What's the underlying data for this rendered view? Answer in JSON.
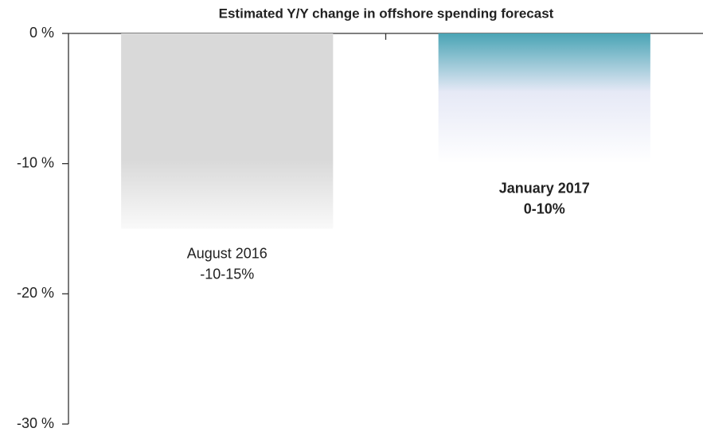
{
  "chart_data": {
    "type": "bar",
    "title": "Estimated Y/Y change in offshore spending forecast",
    "categories": [
      "August 2016",
      "January 2017"
    ],
    "values": [
      -15,
      -10
    ],
    "value_labels": [
      "-10-15%",
      "0-10%"
    ],
    "colors": [
      "#d9d9d9",
      "#4aa4b5"
    ],
    "ylim": [
      -30,
      0
    ],
    "yticks": [
      {
        "value": 0,
        "label": "0 %"
      },
      {
        "value": -10,
        "label": "-10 %"
      },
      {
        "value": -20,
        "label": "-20 %"
      },
      {
        "value": -30,
        "label": "-30 %"
      }
    ]
  }
}
